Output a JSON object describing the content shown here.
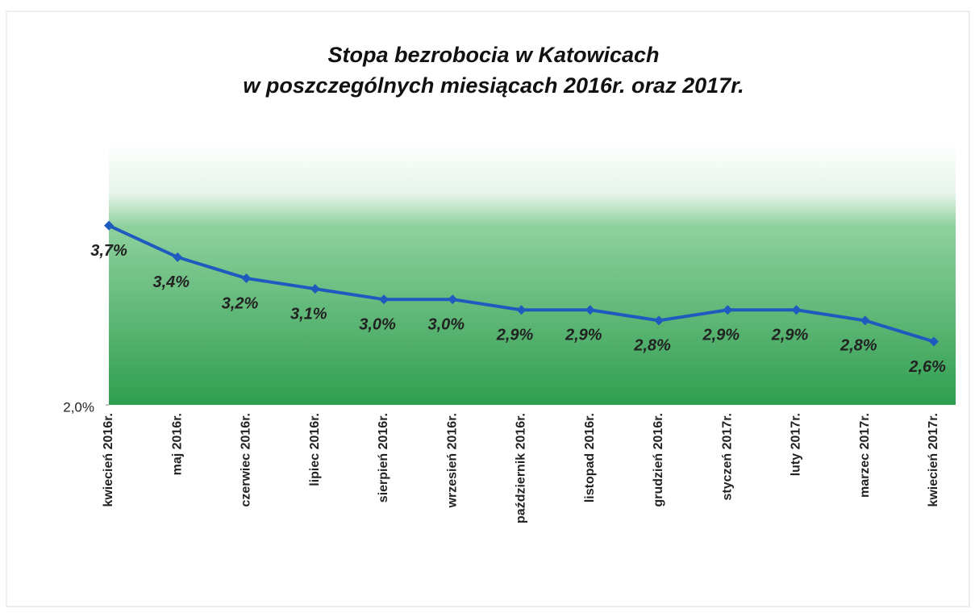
{
  "chart_data": {
    "type": "line",
    "title": "Stopa bezrobocia w Katowicach",
    "subtitle": "w poszczególnych miesiącach 2016r. oraz 2017r.",
    "categories": [
      "kwiecień 2016r.",
      "maj 2016r.",
      "czerwiec 2016r.",
      "lipiec 2016r.",
      "sierpień 2016r.",
      "wrzesień 2016r.",
      "październik 2016r.",
      "listopad 2016r.",
      "grudzień 2016r.",
      "styczeń 2017r.",
      "luty 2017r.",
      "marzec 2017r.",
      "kwiecień 2017r."
    ],
    "values": [
      3.7,
      3.4,
      3.2,
      3.1,
      3.0,
      3.0,
      2.9,
      2.9,
      2.8,
      2.9,
      2.9,
      2.8,
      2.6
    ],
    "value_labels": [
      "3,7%",
      "3,4%",
      "3,2%",
      "3,1%",
      "3,0%",
      "3,0%",
      "2,9%",
      "2,9%",
      "2,8%",
      "2,9%",
      "2,9%",
      "2,8%",
      "2,6%"
    ],
    "color": "#1f5bbf",
    "ylim": [
      2.0,
      4.5
    ],
    "yticks": [
      {
        "value": 2.0,
        "label": "2,0%"
      }
    ]
  }
}
